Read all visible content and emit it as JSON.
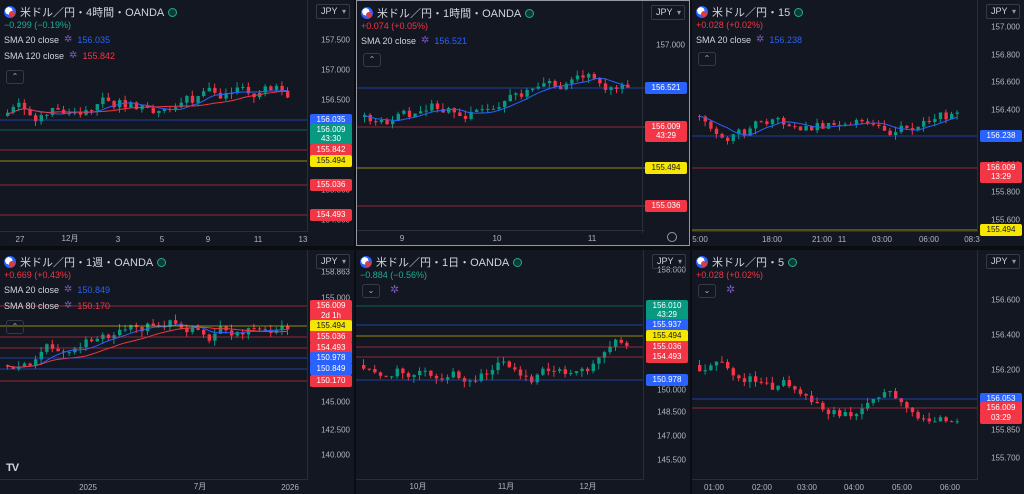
{
  "panels": [
    {
      "symbol": "米ドル／円・4時間・OANDA",
      "change": "−0.299 (−0.19%)",
      "change_color": "#22ab94",
      "currency": "JPY",
      "indicators": [
        {
          "label": "SMA 20 close",
          "value": "156.035",
          "color": "#2962ff"
        },
        {
          "label": "SMA 120 close",
          "value": "155.842",
          "color": "#f23645"
        }
      ],
      "y_ticks": [
        "157.500",
        "157.000",
        "156.500",
        "156.000",
        "155.500",
        "155.000",
        "154.500"
      ],
      "x_ticks": [
        "27",
        "12月",
        "3",
        "5",
        "9",
        "11",
        "13"
      ],
      "tags": [
        {
          "text": "156.035",
          "color": "#2962ff"
        },
        {
          "text": "156.009",
          "color": "#089981"
        },
        {
          "text": "43:30",
          "color": "#089981"
        },
        {
          "text": "155.842",
          "color": "#f23645"
        },
        {
          "text": "155.494",
          "color": "#f7e600",
          "dark": true
        },
        {
          "text": "155.036",
          "color": "#f23645"
        },
        {
          "text": "154.493",
          "color": "#f23645"
        }
      ]
    },
    {
      "symbol": "米ドル／円・1時間・OANDA",
      "change": "+0.074 (+0.05%)",
      "change_color": "#f23645",
      "currency": "JPY",
      "indicators": [
        {
          "label": "SMA 20 close",
          "value": "156.521",
          "color": "#2962ff"
        }
      ],
      "y_ticks": [
        "157.000"
      ],
      "x_ticks": [
        "9",
        "10",
        "11"
      ],
      "tags": [
        {
          "text": "156.521",
          "color": "#2962ff"
        },
        {
          "text": "156.009",
          "color": "#f23645"
        },
        {
          "text": "43:29",
          "color": "#f23645"
        },
        {
          "text": "155.494",
          "color": "#f7e600",
          "dark": true
        },
        {
          "text": "155.036",
          "color": "#f23645"
        }
      ]
    },
    {
      "symbol": "米ドル／円・15",
      "change": "+0.028 (+0.02%)",
      "change_color": "#f23645",
      "currency": "JPY",
      "indicators": [
        {
          "label": "SMA 20 close",
          "value": "156.238",
          "color": "#2962ff"
        }
      ],
      "y_ticks": [
        "157.000",
        "156.800",
        "156.600",
        "156.400",
        "156.200",
        "156.000",
        "155.800",
        "155.600"
      ],
      "x_ticks": [
        "5:00",
        "18:00",
        "21:00",
        "11",
        "03:00",
        "06:00",
        "08:3"
      ],
      "tags": [
        {
          "text": "156.238",
          "color": "#2962ff"
        },
        {
          "text": "156.009",
          "color": "#f23645"
        },
        {
          "text": "13:29",
          "color": "#f23645"
        },
        {
          "text": "155.494",
          "color": "#f7e600",
          "dark": true
        }
      ]
    },
    {
      "symbol": "米ドル／円・1週・OANDA",
      "change": "+0.669 (+0.43%)",
      "change_color": "#f23645",
      "currency": "JPY",
      "indicators": [
        {
          "label": "SMA 20 close",
          "value": "150.849",
          "color": "#2962ff"
        },
        {
          "label": "SMA 80 close",
          "value": "150.170",
          "color": "#f23645"
        }
      ],
      "y_ticks": [
        "158.863",
        "155.000",
        "152.500",
        "150.000",
        "147.500",
        "145.000",
        "142.500",
        "140.000"
      ],
      "x_ticks": [
        "2025",
        "7月",
        "2026"
      ],
      "tags": [
        {
          "text": "156.009",
          "color": "#f23645"
        },
        {
          "text": "2d 1h",
          "color": "#f23645"
        },
        {
          "text": "155.494",
          "color": "#f7e600",
          "dark": true
        },
        {
          "text": "155.036",
          "color": "#f23645"
        },
        {
          "text": "154.493",
          "color": "#f23645"
        },
        {
          "text": "150.978",
          "color": "#2962ff"
        },
        {
          "text": "150.849",
          "color": "#2962ff"
        },
        {
          "text": "150.170",
          "color": "#f23645"
        }
      ]
    },
    {
      "symbol": "米ドル／円・1日・OANDA",
      "change": "−0.884 (−0.56%)",
      "change_color": "#22ab94",
      "currency": "JPY",
      "indicators": [],
      "y_ticks": [
        "158.000",
        "150.000",
        "148.500",
        "147.000",
        "145.500"
      ],
      "x_ticks": [
        "10月",
        "11月",
        "12月"
      ],
      "tags": [
        {
          "text": "156.010",
          "color": "#089981"
        },
        {
          "text": "43:29",
          "color": "#089981"
        },
        {
          "text": "155.937",
          "color": "#2962ff"
        },
        {
          "text": "155.494",
          "color": "#f7e600",
          "dark": true
        },
        {
          "text": "155.036",
          "color": "#f23645"
        },
        {
          "text": "154.493",
          "color": "#f23645"
        },
        {
          "text": "150.978",
          "color": "#2962ff"
        }
      ]
    },
    {
      "symbol": "米ドル／円・5",
      "change": "+0.028 (+0.02%)",
      "change_color": "#f23645",
      "currency": "JPY",
      "indicators": [],
      "y_ticks": [
        "156.600",
        "156.400",
        "156.200",
        "155.850",
        "155.700"
      ],
      "x_ticks": [
        "01:00",
        "02:00",
        "03:00",
        "04:00",
        "05:00",
        "06:00"
      ],
      "tags": [
        {
          "text": "156.053",
          "color": "#2962ff"
        },
        {
          "text": "156.009",
          "color": "#f23645"
        },
        {
          "text": "03:29",
          "color": "#f23645"
        }
      ]
    }
  ]
}
